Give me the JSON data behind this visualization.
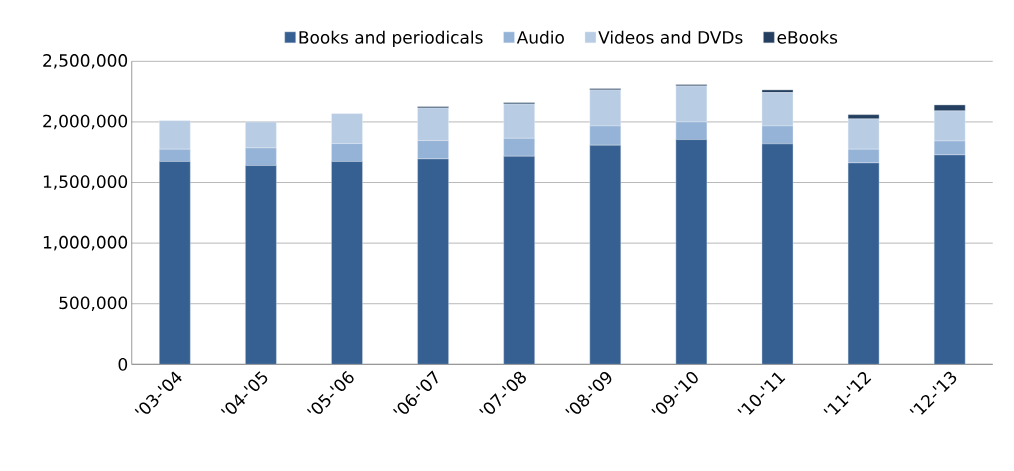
{
  "chart_data": {
    "type": "bar",
    "stacked": true,
    "categories": [
      "'03-'04",
      "'04-'05",
      "'05-'06",
      "'06-'07",
      "'07-'08",
      "'08-'09",
      "'09-'10",
      "'10-'11",
      "'11-'12",
      "'12-'13"
    ],
    "series": [
      {
        "name": "Books and periodicals",
        "color": "#366092",
        "values": [
          1673000,
          1640000,
          1673000,
          1695000,
          1717000,
          1808000,
          1854000,
          1819000,
          1662000,
          1728000
        ]
      },
      {
        "name": "Audio",
        "color": "#95b3d7",
        "values": [
          102000,
          146000,
          148000,
          151000,
          148000,
          159000,
          146000,
          148000,
          113000,
          115000
        ]
      },
      {
        "name": "Videos and DVDs",
        "color": "#b8cce4",
        "values": [
          236000,
          214000,
          248000,
          269000,
          283000,
          297000,
          297000,
          275000,
          250000,
          248000
        ]
      },
      {
        "name": "eBooks",
        "color": "#243f60",
        "values": [
          0,
          0,
          0,
          11000,
          11000,
          11000,
          11000,
          22000,
          35000,
          49000
        ]
      }
    ],
    "ylim": [
      0,
      2500000
    ],
    "yticks": [
      {
        "value": 0,
        "label": "0"
      },
      {
        "value": 500000,
        "label": "500,000"
      },
      {
        "value": 1000000,
        "label": "1,000,000"
      },
      {
        "value": 1500000,
        "label": "1,500,000"
      },
      {
        "value": 2000000,
        "label": "2,000,000"
      },
      {
        "value": 2500000,
        "label": "2,500,000"
      }
    ],
    "grid": "y",
    "legend": "top"
  }
}
